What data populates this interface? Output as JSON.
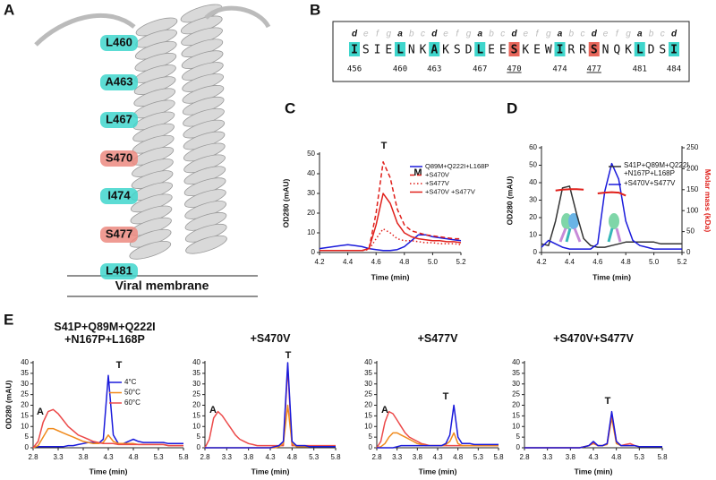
{
  "structure": {
    "label": "A",
    "membrane_label": "Viral membrane",
    "residues": [
      {
        "text": "L460",
        "color": "#3fd6cc"
      },
      {
        "text": "A463",
        "color": "#3fd6cc"
      },
      {
        "text": "L467",
        "color": "#3fd6cc"
      },
      {
        "text": "S470",
        "color": "#ec8a80"
      },
      {
        "text": "I474",
        "color": "#3fd6cc"
      },
      {
        "text": "S477",
        "color": "#ec8a80"
      },
      {
        "text": "L481",
        "color": "#3fd6cc"
      }
    ]
  },
  "sequence": {
    "label": "B",
    "residues": [
      {
        "letter": "I",
        "heptad": "d",
        "number": 456,
        "highlight": "#3fd6cc"
      },
      {
        "letter": "S",
        "heptad": "e"
      },
      {
        "letter": "I",
        "heptad": "f"
      },
      {
        "letter": "E",
        "heptad": "g"
      },
      {
        "letter": "L",
        "heptad": "a",
        "number": 460,
        "highlight": "#3fd6cc"
      },
      {
        "letter": "N",
        "heptad": "b"
      },
      {
        "letter": "K",
        "heptad": "c"
      },
      {
        "letter": "A",
        "heptad": "d",
        "number": 463,
        "highlight": "#3fd6cc"
      },
      {
        "letter": "K",
        "heptad": "e"
      },
      {
        "letter": "S",
        "heptad": "f"
      },
      {
        "letter": "D",
        "heptad": "g"
      },
      {
        "letter": "L",
        "heptad": "a",
        "number": 467,
        "highlight": "#3fd6cc"
      },
      {
        "letter": "E",
        "heptad": "b"
      },
      {
        "letter": "E",
        "heptad": "c"
      },
      {
        "letter": "S",
        "heptad": "d",
        "number": 470,
        "highlight": "#e8665a",
        "underline": true
      },
      {
        "letter": "K",
        "heptad": "e"
      },
      {
        "letter": "E",
        "heptad": "f"
      },
      {
        "letter": "W",
        "heptad": "g"
      },
      {
        "letter": "I",
        "heptad": "a",
        "number": 474,
        "highlight": "#3fd6cc"
      },
      {
        "letter": "R",
        "heptad": "b"
      },
      {
        "letter": "R",
        "heptad": "c"
      },
      {
        "letter": "S",
        "heptad": "d",
        "number": 477,
        "highlight": "#e8665a",
        "underline": true
      },
      {
        "letter": "N",
        "heptad": "e"
      },
      {
        "letter": "Q",
        "heptad": "f"
      },
      {
        "letter": "K",
        "heptad": "g"
      },
      {
        "letter": "L",
        "heptad": "a",
        "number": 481,
        "highlight": "#3fd6cc"
      },
      {
        "letter": "D",
        "heptad": "b"
      },
      {
        "letter": "S",
        "heptad": "c"
      },
      {
        "letter": "I",
        "heptad": "d",
        "number": 484,
        "highlight": "#3fd6cc"
      }
    ]
  },
  "chart_data": [
    {
      "type": "line",
      "label": "C",
      "ylabel": "OD280 (mAU)",
      "xlabel": "Time (min)",
      "xlim": [
        4.2,
        5.2
      ],
      "xticks": [
        4.2,
        4.4,
        4.6,
        4.8,
        {
          "value": 5,
          "label": "5.0"
        },
        5.2
      ],
      "ylim": [
        0,
        50
      ],
      "yticks": [
        0,
        10,
        20,
        30,
        40,
        50
      ],
      "annotations": [
        "T",
        "M"
      ],
      "legend": "upper right",
      "x": [
        4.2,
        4.25,
        4.3,
        4.35,
        4.4,
        4.45,
        4.5,
        4.55,
        4.6,
        4.65,
        4.7,
        4.75,
        4.8,
        4.85,
        4.9,
        4.95,
        5.0,
        5.05,
        5.1,
        5.15,
        5.2
      ],
      "series": [
        {
          "name": "Q89M+Q222I+L168P",
          "color": "#1a1adb",
          "dash": "solid",
          "values": [
            2,
            2.5,
            3,
            3.5,
            4,
            3.5,
            3,
            2,
            1.5,
            1,
            1,
            1.5,
            3,
            6,
            9,
            9,
            8,
            7.5,
            7,
            6.5,
            6
          ]
        },
        {
          "name": "+S470V",
          "color": "#e0201b",
          "dash": "dashed",
          "values": [
            1,
            1,
            1,
            1,
            1,
            1,
            1,
            2,
            20,
            46,
            38,
            22,
            14,
            11,
            10,
            9,
            8.5,
            8,
            7.5,
            7,
            7
          ]
        },
        {
          "name": "+S477V",
          "color": "#e0201b",
          "dash": "dotted",
          "values": [
            1,
            1,
            1,
            1,
            1,
            1,
            1,
            1.5,
            7,
            12,
            10,
            7,
            6,
            6,
            5.5,
            5,
            5,
            4.5,
            4.5,
            4.5,
            4
          ]
        },
        {
          "name": "+S470V +S477V",
          "color": "#e0201b",
          "dash": "solid",
          "values": [
            1,
            1,
            1,
            1,
            1,
            1,
            1,
            2,
            14,
            30,
            25,
            15,
            10,
            8,
            7,
            6.5,
            6,
            6,
            5.5,
            5.5,
            5
          ]
        }
      ]
    },
    {
      "type": "line",
      "label": "D",
      "ylabel": "OD280 (mAU)",
      "y2label": "Molar mass (kDa)",
      "xlabel": "Time (min)",
      "xlim": [
        4.2,
        5.2
      ],
      "xticks": [
        4.2,
        4.4,
        4.6,
        4.8,
        {
          "value": 5,
          "label": "5.0"
        },
        5.2
      ],
      "ylim": [
        0,
        60
      ],
      "yticks": [
        0,
        10,
        20,
        30,
        40,
        50,
        60
      ],
      "y2lim": [
        0,
        250
      ],
      "y2ticks": [
        0,
        50,
        100,
        150,
        200,
        250
      ],
      "y2color": "#e0201b",
      "legend": "upper right",
      "x": [
        4.2,
        4.25,
        4.3,
        4.35,
        4.4,
        4.45,
        4.5,
        4.55,
        4.6,
        4.65,
        4.7,
        4.75,
        4.8,
        4.85,
        4.9,
        4.95,
        5.0,
        5.05,
        5.1,
        5.15,
        5.2
      ],
      "series": [
        {
          "name": "S41P+Q89M+Q222I +N167P+L168P",
          "color": "#333333",
          "dash": "solid",
          "values": [
            5,
            4,
            18,
            37,
            38,
            22,
            8,
            4,
            3,
            3,
            4,
            5,
            6,
            6,
            6,
            6,
            6,
            5,
            5,
            5,
            5
          ]
        },
        {
          "name": "+S470V+S477V",
          "color": "#1a1adb",
          "dash": "solid",
          "values": [
            3,
            7,
            5,
            3,
            2,
            2,
            2,
            2,
            5,
            35,
            51,
            42,
            18,
            7,
            4,
            3,
            2,
            2,
            2,
            2,
            2
          ]
        },
        {
          "color": "#e0201b",
          "dash": "solid",
          "axis": "y2",
          "values": [
            null,
            null,
            148,
            150,
            151,
            151,
            150,
            null,
            141,
            143,
            144,
            143,
            136,
            null,
            null,
            null,
            null,
            null,
            null,
            null,
            null
          ]
        }
      ]
    },
    {
      "type": "line",
      "label": "E",
      "title": "S41P+Q89M+Q222I +N167P+L168P",
      "ylabel": "OD280 (mAU)",
      "xlabel": "Time (min)",
      "xlim": [
        2.8,
        5.8
      ],
      "xticks": [
        2.8,
        3.3,
        3.8,
        4.3,
        4.8,
        5.3,
        5.8
      ],
      "ylim": [
        0,
        40
      ],
      "yticks": [
        0,
        5,
        10,
        15,
        20,
        25,
        30,
        35,
        40
      ],
      "annotations": [
        "A",
        "T"
      ],
      "legend": "upper right",
      "x": [
        2.8,
        2.9,
        3.0,
        3.1,
        3.2,
        3.3,
        3.4,
        3.5,
        3.6,
        3.7,
        3.8,
        3.9,
        4.0,
        4.1,
        4.2,
        4.3,
        4.4,
        4.5,
        4.6,
        4.7,
        4.8,
        4.9,
        5.0,
        5.1,
        5.2,
        5.3,
        5.4,
        5.5,
        5.6,
        5.7,
        5.8
      ],
      "series": [
        {
          "name": "4°C",
          "color": "#1a1adb",
          "dash": "solid",
          "values": [
            0.5,
            0.5,
            0.5,
            0.5,
            0.5,
            0.5,
            0.5,
            1,
            1,
            1.5,
            2,
            2.5,
            2.5,
            2,
            4,
            34,
            6,
            2,
            2,
            3,
            4,
            3,
            2.5,
            2.5,
            2.5,
            2.5,
            2.5,
            2,
            2,
            2,
            2
          ]
        },
        {
          "name": "50°C",
          "color": "#f08a1c",
          "dash": "solid",
          "values": [
            0,
            1,
            5,
            9,
            9,
            8,
            7,
            6,
            5,
            4,
            3,
            2.5,
            2,
            2,
            2.5,
            6,
            3,
            2,
            2,
            2,
            2,
            1.5,
            1.5,
            1.5,
            1.5,
            1.5,
            1.5,
            1,
            1,
            1,
            1
          ]
        },
        {
          "name": "60°C",
          "color": "#ec4a4a",
          "dash": "solid",
          "values": [
            0,
            3,
            12,
            17,
            18,
            16,
            13,
            10,
            8,
            6,
            5,
            4,
            3,
            2.5,
            2,
            2,
            2,
            1.5,
            1.5,
            1.5,
            1.5,
            1.5,
            1.5,
            1.5,
            1.5,
            1.5,
            1.5,
            1,
            1,
            1,
            1
          ]
        }
      ]
    },
    {
      "type": "line",
      "title": "+S470V",
      "xlabel": "Time (min)",
      "xlim": [
        2.8,
        5.8
      ],
      "xticks": [
        2.8,
        3.3,
        3.8,
        4.3,
        4.8,
        5.3,
        5.8
      ],
      "ylim": [
        0,
        40
      ],
      "yticks": [
        0,
        5,
        10,
        15,
        20,
        25,
        30,
        35,
        40
      ],
      "annotations": [
        "A",
        "T"
      ],
      "x": [
        2.8,
        2.9,
        3.0,
        3.1,
        3.2,
        3.3,
        3.4,
        3.5,
        3.6,
        3.7,
        3.8,
        3.9,
        4.0,
        4.1,
        4.2,
        4.3,
        4.4,
        4.5,
        4.6,
        4.7,
        4.8,
        4.9,
        5.0,
        5.1,
        5.2,
        5.3,
        5.4,
        5.5,
        5.6,
        5.7,
        5.8
      ],
      "series": [
        {
          "color": "#ec4a4a",
          "dash": "solid",
          "values": [
            0,
            4,
            14,
            17,
            15,
            12,
            9,
            6,
            4,
            3,
            2,
            1.5,
            1,
            1,
            1,
            1,
            1,
            1,
            1,
            38,
            1,
            1,
            1,
            1,
            1,
            1,
            1,
            1,
            1,
            1,
            1
          ]
        },
        {
          "color": "#f08a1c",
          "dash": "solid",
          "values": [
            0,
            0,
            0,
            0,
            0,
            0,
            0,
            0,
            0,
            0,
            0,
            0,
            0,
            0,
            0,
            0,
            0,
            0.5,
            2,
            20,
            2,
            0.5,
            0.5,
            0.5,
            0.5,
            0.5,
            0.5,
            0.5,
            0.5,
            0.5,
            0.5
          ]
        },
        {
          "color": "#1a1adb",
          "dash": "solid",
          "values": [
            0,
            0,
            0,
            0,
            0,
            0,
            0,
            0,
            0,
            0,
            0,
            0,
            0,
            0,
            0,
            0,
            0.5,
            1,
            3,
            40,
            3,
            1,
            1,
            1,
            0.5,
            0.5,
            0.5,
            0.5,
            0.5,
            0.5,
            0.5
          ]
        }
      ]
    },
    {
      "type": "line",
      "title": "+S477V",
      "xlabel": "Time (min)",
      "xlim": [
        2.8,
        5.8
      ],
      "xticks": [
        2.8,
        3.3,
        3.8,
        4.3,
        4.8,
        5.3,
        5.8
      ],
      "ylim": [
        0,
        40
      ],
      "yticks": [
        0,
        5,
        10,
        15,
        20,
        25,
        30,
        35,
        40
      ],
      "annotations": [
        "A",
        "T"
      ],
      "x": [
        2.8,
        2.9,
        3.0,
        3.1,
        3.2,
        3.3,
        3.4,
        3.5,
        3.6,
        3.7,
        3.8,
        3.9,
        4.0,
        4.1,
        4.2,
        4.3,
        4.4,
        4.5,
        4.6,
        4.7,
        4.8,
        4.9,
        5.0,
        5.1,
        5.2,
        5.3,
        5.4,
        5.5,
        5.6,
        5.7,
        5.8
      ],
      "series": [
        {
          "color": "#ec4a4a",
          "dash": "solid",
          "values": [
            0,
            3,
            12,
            17,
            16,
            13,
            10,
            7,
            5,
            4,
            3,
            2,
            1.5,
            1,
            1,
            1,
            1,
            1,
            1,
            1,
            1,
            1,
            1,
            1,
            1,
            1,
            1,
            1,
            1,
            1,
            1
          ]
        },
        {
          "color": "#f08a1c",
          "dash": "solid",
          "values": [
            0,
            0.5,
            2,
            5,
            7,
            7,
            6,
            5,
            4,
            3,
            2,
            1.5,
            1,
            1,
            1,
            1,
            1,
            1.5,
            3,
            7,
            2,
            1,
            1,
            1,
            1,
            1,
            1,
            1,
            1,
            1,
            1
          ]
        },
        {
          "color": "#1a1adb",
          "dash": "solid",
          "values": [
            0,
            0,
            0,
            0,
            0,
            0.5,
            1,
            1,
            1,
            1,
            1,
            1,
            1,
            1,
            1,
            1,
            1,
            2,
            6,
            20,
            5,
            2,
            2,
            2,
            1.5,
            1.5,
            1.5,
            1.5,
            1.5,
            1.5,
            1.5
          ]
        }
      ]
    },
    {
      "type": "line",
      "title": "+S470V+S477V",
      "xlabel": "Time (min)",
      "xlim": [
        2.8,
        5.8
      ],
      "xticks": [
        2.8,
        3.3,
        3.8,
        4.3,
        4.8,
        5.3,
        5.8
      ],
      "ylim": [
        0,
        40
      ],
      "yticks": [
        0,
        5,
        10,
        15,
        20,
        25,
        30,
        35,
        40
      ],
      "annotations": [
        "T"
      ],
      "x": [
        2.8,
        2.9,
        3.0,
        3.1,
        3.2,
        3.3,
        3.4,
        3.5,
        3.6,
        3.7,
        3.8,
        3.9,
        4.0,
        4.1,
        4.2,
        4.3,
        4.4,
        4.5,
        4.6,
        4.7,
        4.8,
        4.9,
        5.0,
        5.1,
        5.2,
        5.3,
        5.4,
        5.5,
        5.6,
        5.7,
        5.8
      ],
      "series": [
        {
          "color": "#f08a1c",
          "dash": "solid",
          "values": [
            0,
            0,
            0,
            0,
            0,
            0,
            0,
            0,
            0,
            0,
            0,
            0,
            0,
            0.5,
            1,
            2,
            1,
            1,
            1.5,
            14,
            2,
            1,
            1,
            1,
            1,
            0.5,
            0.5,
            0.5,
            0.5,
            0.5,
            0.5
          ]
        },
        {
          "color": "#ec4a4a",
          "dash": "solid",
          "values": [
            0,
            0,
            0,
            0,
            0,
            0,
            0,
            0,
            0,
            0,
            0,
            0,
            0,
            0.5,
            1,
            2.5,
            1,
            1,
            2,
            16,
            3,
            1,
            1.5,
            2,
            1,
            0.5,
            0.5,
            0.5,
            0.5,
            0.5,
            0.5
          ]
        },
        {
          "color": "#1a1adb",
          "dash": "solid",
          "values": [
            0,
            0,
            0,
            0,
            0,
            0,
            0,
            0,
            0,
            0,
            0,
            0,
            0,
            0.5,
            1,
            3,
            1,
            1,
            2,
            17,
            3,
            1,
            1,
            1,
            1,
            0.5,
            0.5,
            0.5,
            0.5,
            0.5,
            0.5
          ]
        }
      ]
    }
  ]
}
